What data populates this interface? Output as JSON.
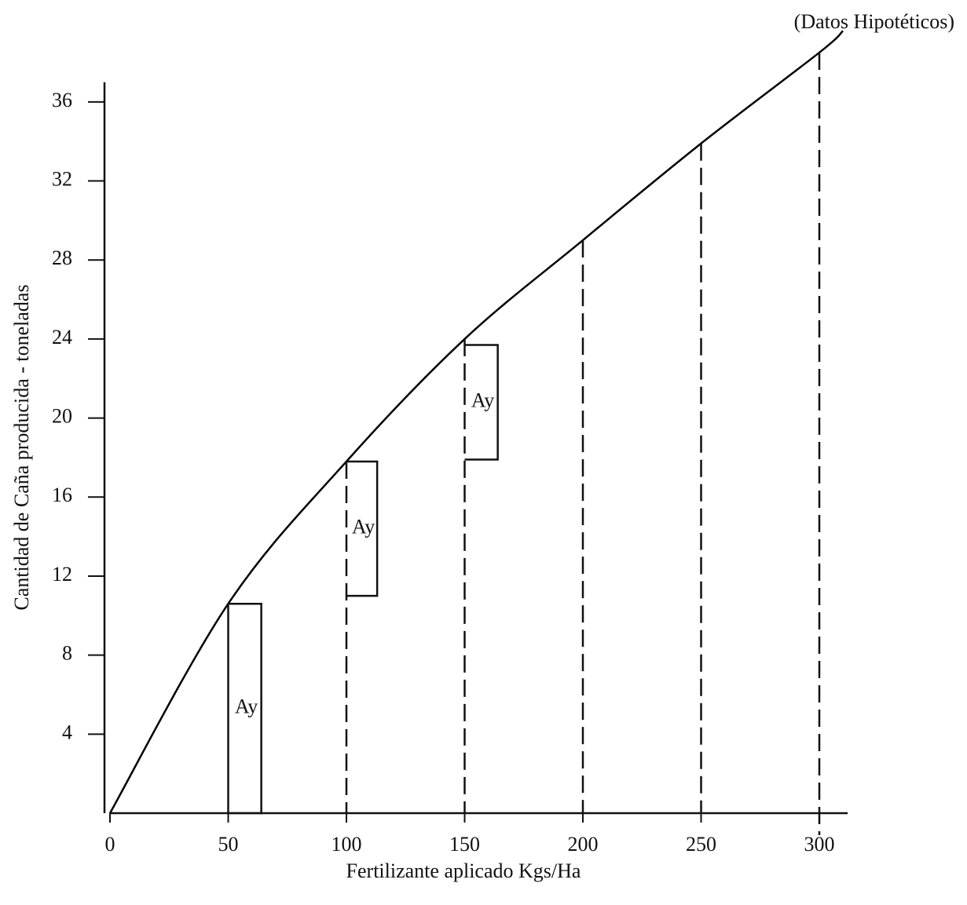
{
  "chart_data": {
    "type": "line",
    "title": "(Datos Hipotéticos)",
    "x_label": "Fertilizante aplicado  Kgs/Ha",
    "y_label": "Cantidad de Caña producida - toneladas",
    "x": [
      0,
      50,
      100,
      150,
      200,
      250,
      300,
      310
    ],
    "values": [
      0,
      10.6,
      17.8,
      24.0,
      29.0,
      33.9,
      38.5,
      39.6
    ],
    "color": "#000000",
    "drop_lines": [
      50,
      100,
      150,
      200,
      250,
      300
    ],
    "brackets": [
      {
        "label": "Ay",
        "x0": 50,
        "x1": 64,
        "y0": 0,
        "y1": 10.6
      },
      {
        "label": "Ay",
        "x0": 100,
        "x1": 113,
        "y0": 11,
        "y1": 17.8
      },
      {
        "label": "Ay",
        "x0": 150,
        "x1": 164,
        "y0": 17.9,
        "y1": 23.7
      }
    ],
    "xlim": [
      0,
      312
    ],
    "ylim": [
      0,
      37
    ],
    "xticks": [
      0,
      50,
      100,
      150,
      200,
      250,
      300
    ],
    "yticks": [
      4,
      8,
      12,
      16,
      20,
      24,
      28,
      32,
      36
    ]
  }
}
